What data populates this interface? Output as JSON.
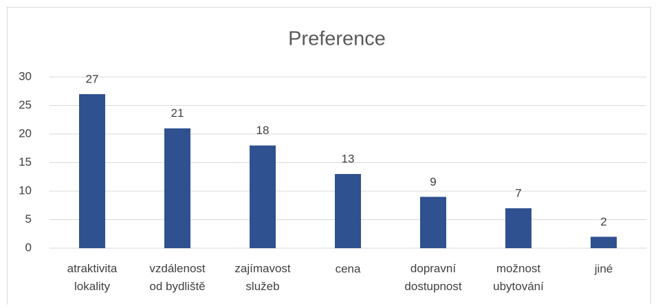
{
  "chart_data": {
    "type": "bar",
    "title": "Preference",
    "categories": [
      "atraktivita\nlokality",
      "vzdálenost\nod bydliště",
      "zajímavost\nslužeb",
      "cena",
      "dopravní\ndostupnost",
      "možnost\nubytování",
      "jiné"
    ],
    "values": [
      27,
      21,
      18,
      13,
      9,
      7,
      2
    ],
    "color": "#2f5190",
    "ylim": [
      0,
      30
    ],
    "yticks": [
      0,
      5,
      10,
      15,
      20,
      25,
      30
    ],
    "grid": true
  }
}
